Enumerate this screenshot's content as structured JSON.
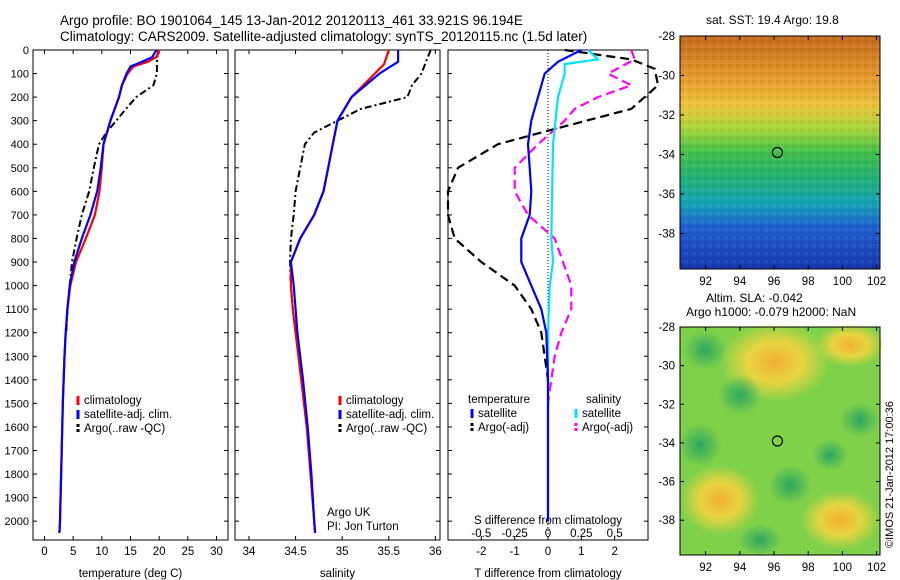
{
  "header": {
    "line1": "Argo profile: BO 1901064_145 13-Jan-2012 20120113_461 33.921S 96.194E",
    "line2": "Climatology: CARS2009. Satellite-adjusted climatology: synTS_20120115.nc (1.5d later)"
  },
  "depth_ticks": [
    0,
    100,
    200,
    300,
    400,
    500,
    600,
    700,
    800,
    900,
    1000,
    1100,
    1200,
    1300,
    1400,
    1500,
    1600,
    1700,
    1800,
    1900,
    2000
  ],
  "colors": {
    "climatology": "#ff0000",
    "satellite": "#0000ff",
    "argo": "#000000",
    "sal_satellite": "#00e5ff",
    "sal_argo": "#ff00ff"
  },
  "chart_data": [
    {
      "type": "line",
      "name": "temperature",
      "xlabel": "temperature (deg C)",
      "xticks": [
        0,
        5,
        10,
        15,
        20,
        25,
        30
      ],
      "xlim": [
        -2,
        32
      ],
      "ylim": [
        0,
        2080
      ],
      "legend": [
        "climatology",
        "satellite-adj. clim.",
        "Argo(..raw -QC)"
      ],
      "series": [
        {
          "name": "climatology",
          "depth": [
            0,
            30,
            50,
            70,
            100,
            150,
            200,
            300,
            400,
            500,
            600,
            700,
            800,
            900,
            1000,
            1100,
            1200,
            1300,
            1500,
            1700,
            2000,
            2050
          ],
          "values": [
            20.0,
            19.5,
            18.0,
            15.5,
            14.5,
            13.5,
            13.0,
            11.5,
            10.3,
            10.0,
            9.6,
            8.8,
            7.2,
            5.5,
            4.5,
            4.0,
            3.7,
            3.5,
            3.2,
            3.0,
            2.7,
            2.6
          ]
        },
        {
          "name": "satellite-adj. clim.",
          "depth": [
            0,
            30,
            50,
            70,
            100,
            150,
            200,
            300,
            400,
            500,
            600,
            700,
            800,
            900,
            1000,
            1100,
            1200,
            1300,
            1500,
            1700,
            2000,
            2050
          ],
          "values": [
            19.5,
            18.8,
            17.0,
            15.0,
            14.3,
            13.5,
            13.0,
            11.5,
            10.3,
            9.8,
            9.2,
            8.0,
            6.5,
            5.2,
            4.4,
            4.0,
            3.7,
            3.5,
            3.2,
            3.0,
            2.7,
            2.6
          ]
        },
        {
          "name": "Argo(..raw -QC)",
          "depth": [
            0,
            50,
            100,
            150,
            200,
            250,
            300,
            350,
            400,
            500,
            600,
            700,
            800,
            900,
            1000,
            1100,
            1200
          ],
          "values": [
            19.8,
            19.6,
            19.6,
            19.0,
            16.0,
            14.2,
            12.5,
            10.8,
            9.5,
            8.6,
            7.8,
            6.5,
            5.6,
            4.8,
            4.4,
            4.0,
            3.8
          ]
        }
      ]
    },
    {
      "type": "line",
      "name": "salinity",
      "xlabel": "salinity",
      "xticks": [
        34,
        34.5,
        35,
        35.5,
        36
      ],
      "xlim": [
        33.85,
        36.05
      ],
      "ylim": [
        0,
        2080
      ],
      "legend": [
        "climatology",
        "satellite-adj. clim.",
        "Argo(..raw -QC)"
      ],
      "annotation": [
        "Argo UK",
        "PI: Jon Turton"
      ],
      "series": [
        {
          "name": "climatology",
          "depth": [
            0,
            60,
            100,
            200,
            300,
            400,
            500,
            600,
            700,
            800,
            900,
            1000,
            1100,
            1200,
            1400,
            1600,
            1800,
            2000,
            2050
          ],
          "values": [
            35.5,
            35.45,
            35.35,
            35.1,
            34.95,
            34.9,
            34.85,
            34.8,
            34.7,
            34.55,
            34.45,
            34.45,
            34.47,
            34.5,
            34.56,
            34.62,
            34.66,
            34.7,
            34.71
          ]
        },
        {
          "name": "satellite-adj. clim.",
          "depth": [
            0,
            50,
            100,
            200,
            300,
            400,
            500,
            600,
            700,
            800,
            900,
            1000,
            1100,
            1200,
            1400,
            1600,
            1800,
            2000,
            2050
          ],
          "values": [
            35.6,
            35.6,
            35.4,
            35.1,
            34.95,
            34.9,
            34.85,
            34.8,
            34.7,
            34.55,
            34.45,
            34.48,
            34.5,
            34.52,
            34.58,
            34.63,
            34.67,
            34.7,
            34.71
          ]
        },
        {
          "name": "Argo(..raw -QC)",
          "depth": [
            0,
            50,
            100,
            150,
            200,
            250,
            300,
            350,
            400,
            500,
            600,
            700,
            800,
            900,
            1000,
            1100,
            1200
          ],
          "values": [
            35.95,
            35.9,
            35.85,
            35.75,
            35.7,
            35.2,
            34.95,
            34.7,
            34.6,
            34.55,
            34.5,
            34.48,
            34.45,
            34.44,
            34.45,
            34.47,
            34.5
          ]
        }
      ]
    },
    {
      "type": "line",
      "name": "difference",
      "xlabel": "T difference from climatology",
      "xticks": [
        "-2",
        "-1",
        "0",
        "1",
        "2"
      ],
      "xlim": [
        -3,
        3
      ],
      "xlabel_top": "S difference from climatology",
      "xticks_top": [
        "-0.5",
        "-0.25",
        "0",
        "0.25",
        "0.5"
      ],
      "legend_titles": [
        "temperature",
        "salinity"
      ],
      "legend": [
        "satellite",
        "Argo(-adj)",
        "satellite",
        "Argo(-adj)"
      ],
      "series": [
        {
          "name": "satellite",
          "depth": [
            0,
            50,
            100,
            200,
            300,
            400,
            500,
            600,
            700,
            800,
            900,
            1000,
            1100,
            1200,
            1400,
            2000
          ],
          "values": [
            1.0,
            0.3,
            -0.1,
            -0.3,
            -0.5,
            -0.6,
            -0.55,
            -0.5,
            -0.55,
            -0.8,
            -0.8,
            -0.5,
            -0.2,
            -0.05,
            0,
            0
          ]
        },
        {
          "name": "satellite (S)",
          "depth": [
            0,
            40,
            60,
            100,
            200,
            400,
            800,
            900,
            1000,
            1200,
            2000
          ],
          "values": [
            1.2,
            1.5,
            0.5,
            0.5,
            0.3,
            0.15,
            0.1,
            0.15,
            0.05,
            0.0,
            0.0
          ]
        },
        {
          "name": "Argo(-adj)",
          "depth": [
            0,
            40,
            80,
            150,
            250,
            350,
            400,
            500,
            600,
            700,
            800,
            900,
            1000,
            1100,
            1200,
            1300,
            1400
          ],
          "values": [
            0.5,
            2.5,
            3.2,
            3.3,
            2.5,
            -0.2,
            -1.5,
            -2.7,
            -3.0,
            -3.0,
            -2.8,
            -2.0,
            -1.0,
            -0.5,
            -0.2,
            -0.1,
            0
          ]
        },
        {
          "name": "Argo(-adj) (S)",
          "depth": [
            0,
            40,
            100,
            150,
            200,
            250,
            300,
            400,
            500,
            600,
            700,
            800,
            1000,
            1100,
            1200,
            1300,
            1400,
            1500
          ],
          "values": [
            2.5,
            2.6,
            1.8,
            2.5,
            1.5,
            0.8,
            0.5,
            -0.3,
            -1.0,
            -1.0,
            -0.6,
            0.2,
            0.7,
            0.7,
            0.4,
            0.2,
            0.1,
            0
          ]
        }
      ]
    },
    {
      "type": "heatmap",
      "name": "sst_map",
      "title": "sat. SST: 19.4  Argo: 19.8",
      "xticks": [
        92,
        94,
        96,
        98,
        100,
        102
      ],
      "yticks": [
        -28,
        -30,
        -32,
        -34,
        -36,
        -38
      ],
      "marker": [
        96.2,
        -33.9
      ]
    },
    {
      "type": "heatmap",
      "name": "sla_map",
      "title_lines": [
        "Altim. SLA: -0.042",
        "Argo h1000: -0.079  h2000: NaN"
      ],
      "xticks": [
        92,
        94,
        96,
        98,
        100,
        102
      ],
      "yticks": [
        -28,
        -30,
        -32,
        -34,
        -36,
        -38
      ],
      "marker": [
        96.2,
        -33.9
      ]
    }
  ],
  "footer_credit": "©IMOS 21-Jan-2012 17:00:36"
}
